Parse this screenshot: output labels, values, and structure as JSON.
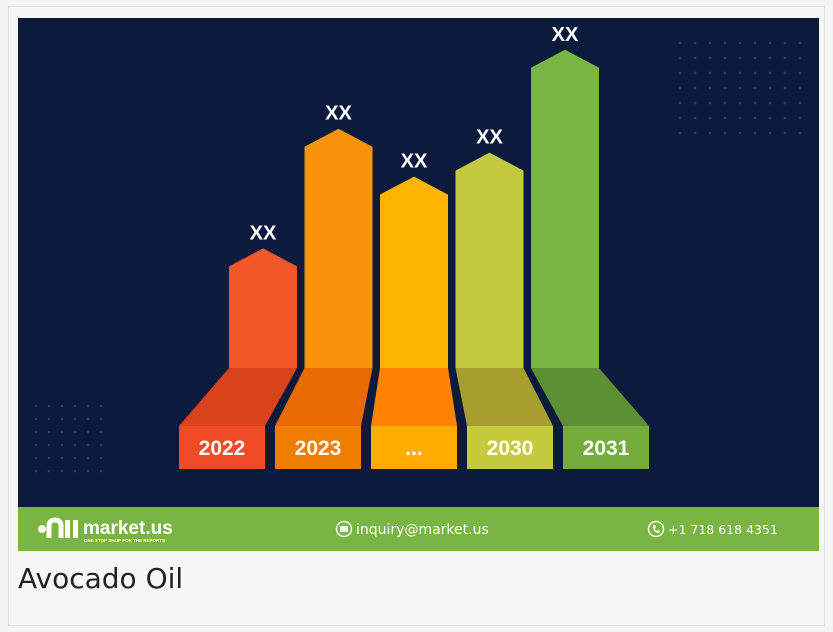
{
  "caption": "Avocado Oil",
  "footer": {
    "brand": "market.us",
    "tagline": "ONE STOP SHOP FOR THE REPORTS",
    "email": "inquiry@market.us",
    "phone": "+1 718 618 4351"
  },
  "colors": {
    "background": "#0c1a3c",
    "footer": "#79b543",
    "dots": "#2a3a60"
  },
  "chart_data": {
    "type": "bar",
    "title": "",
    "xlabel": "",
    "ylabel": "",
    "categories": [
      "2022",
      "2023",
      "...",
      "2030",
      "2031"
    ],
    "values": [
      5,
      10,
      8,
      9,
      13.3
    ],
    "value_labels": [
      "XX",
      "XX",
      "XX",
      "XX",
      "XX"
    ],
    "ylim": [
      0,
      14
    ],
    "grid": false,
    "colors": {
      "front": [
        "#f2572a",
        "#f79209",
        "#fdb400",
        "#c3c93d",
        "#79b543"
      ],
      "base": [
        "#d8431c",
        "#e86a00",
        "#ff8300",
        "#a69f2f",
        "#5d8f33"
      ],
      "label": [
        "#ef4b26",
        "#f07d00",
        "#ffad00",
        "#c6cb3e",
        "#74ad3c"
      ]
    }
  }
}
